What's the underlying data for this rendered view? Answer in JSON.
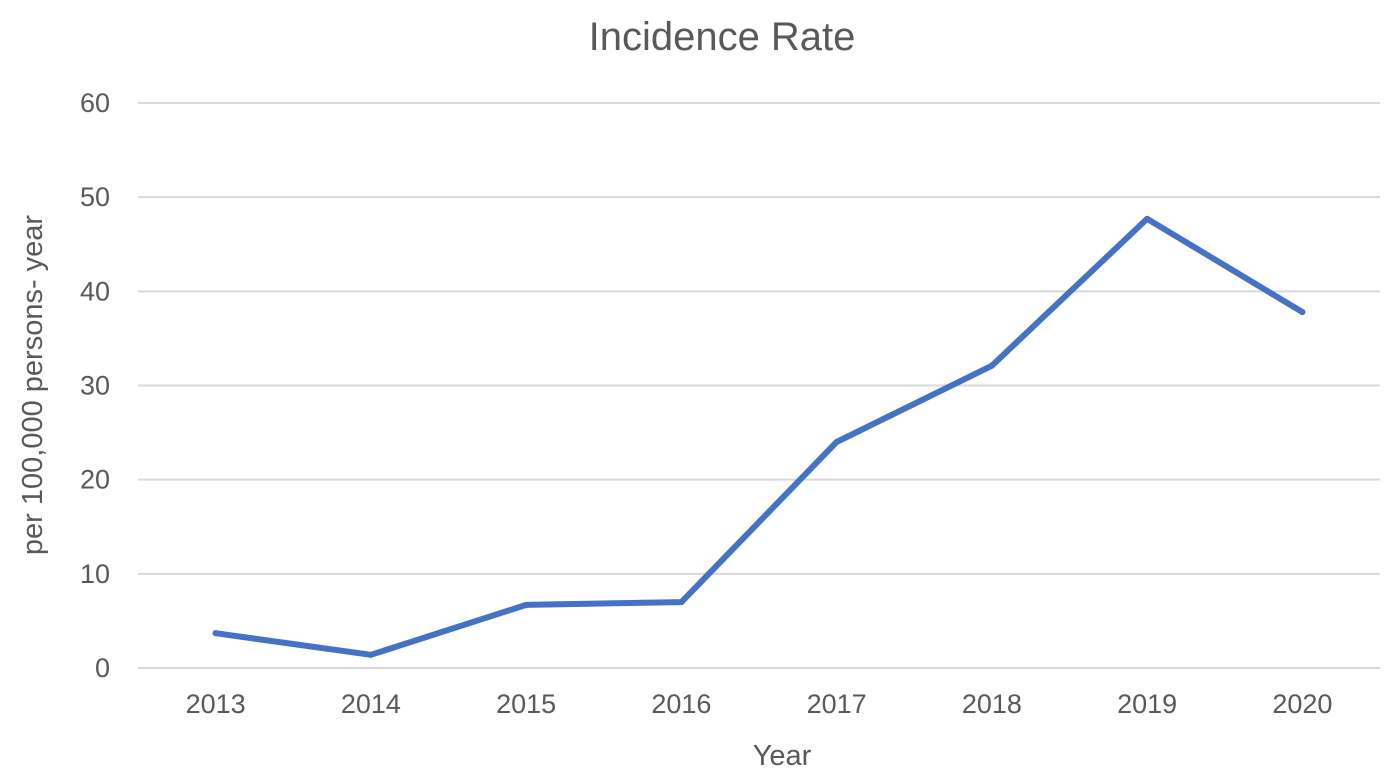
{
  "chart_data": {
    "type": "line",
    "title": "Incidence Rate",
    "xlabel": "Year",
    "ylabel": "per 100,000 persons- year",
    "categories": [
      "2013",
      "2014",
      "2015",
      "2016",
      "2017",
      "2018",
      "2019",
      "2020"
    ],
    "series": [
      {
        "values": [
          3.7,
          1.4,
          6.7,
          7.0,
          24.0,
          32.1,
          47.7,
          37.8
        ],
        "color": "#4472c4"
      }
    ],
    "ylim": [
      0,
      60
    ],
    "yticks": [
      "0",
      "10",
      "20",
      "30",
      "40",
      "50",
      "60"
    ],
    "grid": true,
    "legend": "none"
  }
}
